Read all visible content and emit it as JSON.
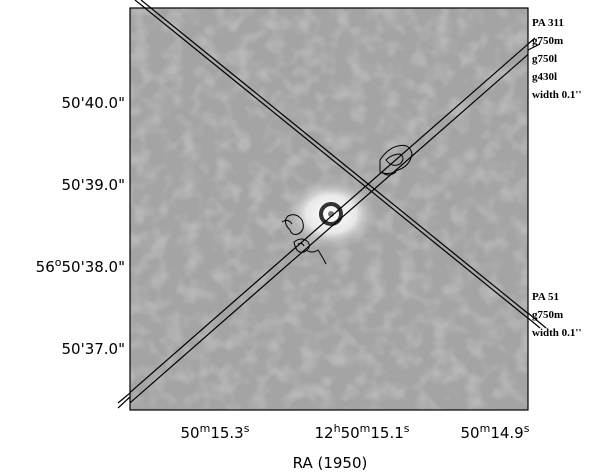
{
  "figure": {
    "x_axis_label": "RA (1950)",
    "x_tick_labels": [
      [
        "50",
        "m",
        "15.3",
        "s"
      ],
      [
        "12",
        "h",
        "50",
        "m",
        "15.1",
        "s"
      ],
      [
        "50",
        "m",
        "14.9",
        "s"
      ]
    ],
    "y_tick_labels": [
      [
        "50'40.0\""
      ],
      [
        "50'39.0\""
      ],
      [
        "56",
        "o",
        "50'38.0\""
      ],
      [
        "50'37.0\""
      ]
    ],
    "annotations": [
      {
        "lines": [
          "PA 311",
          "g750m",
          "g750l",
          "g430l",
          "width 0.1''"
        ]
      },
      {
        "lines": [
          "PA 51",
          "g750m",
          "width 0.1''"
        ]
      }
    ]
  }
}
